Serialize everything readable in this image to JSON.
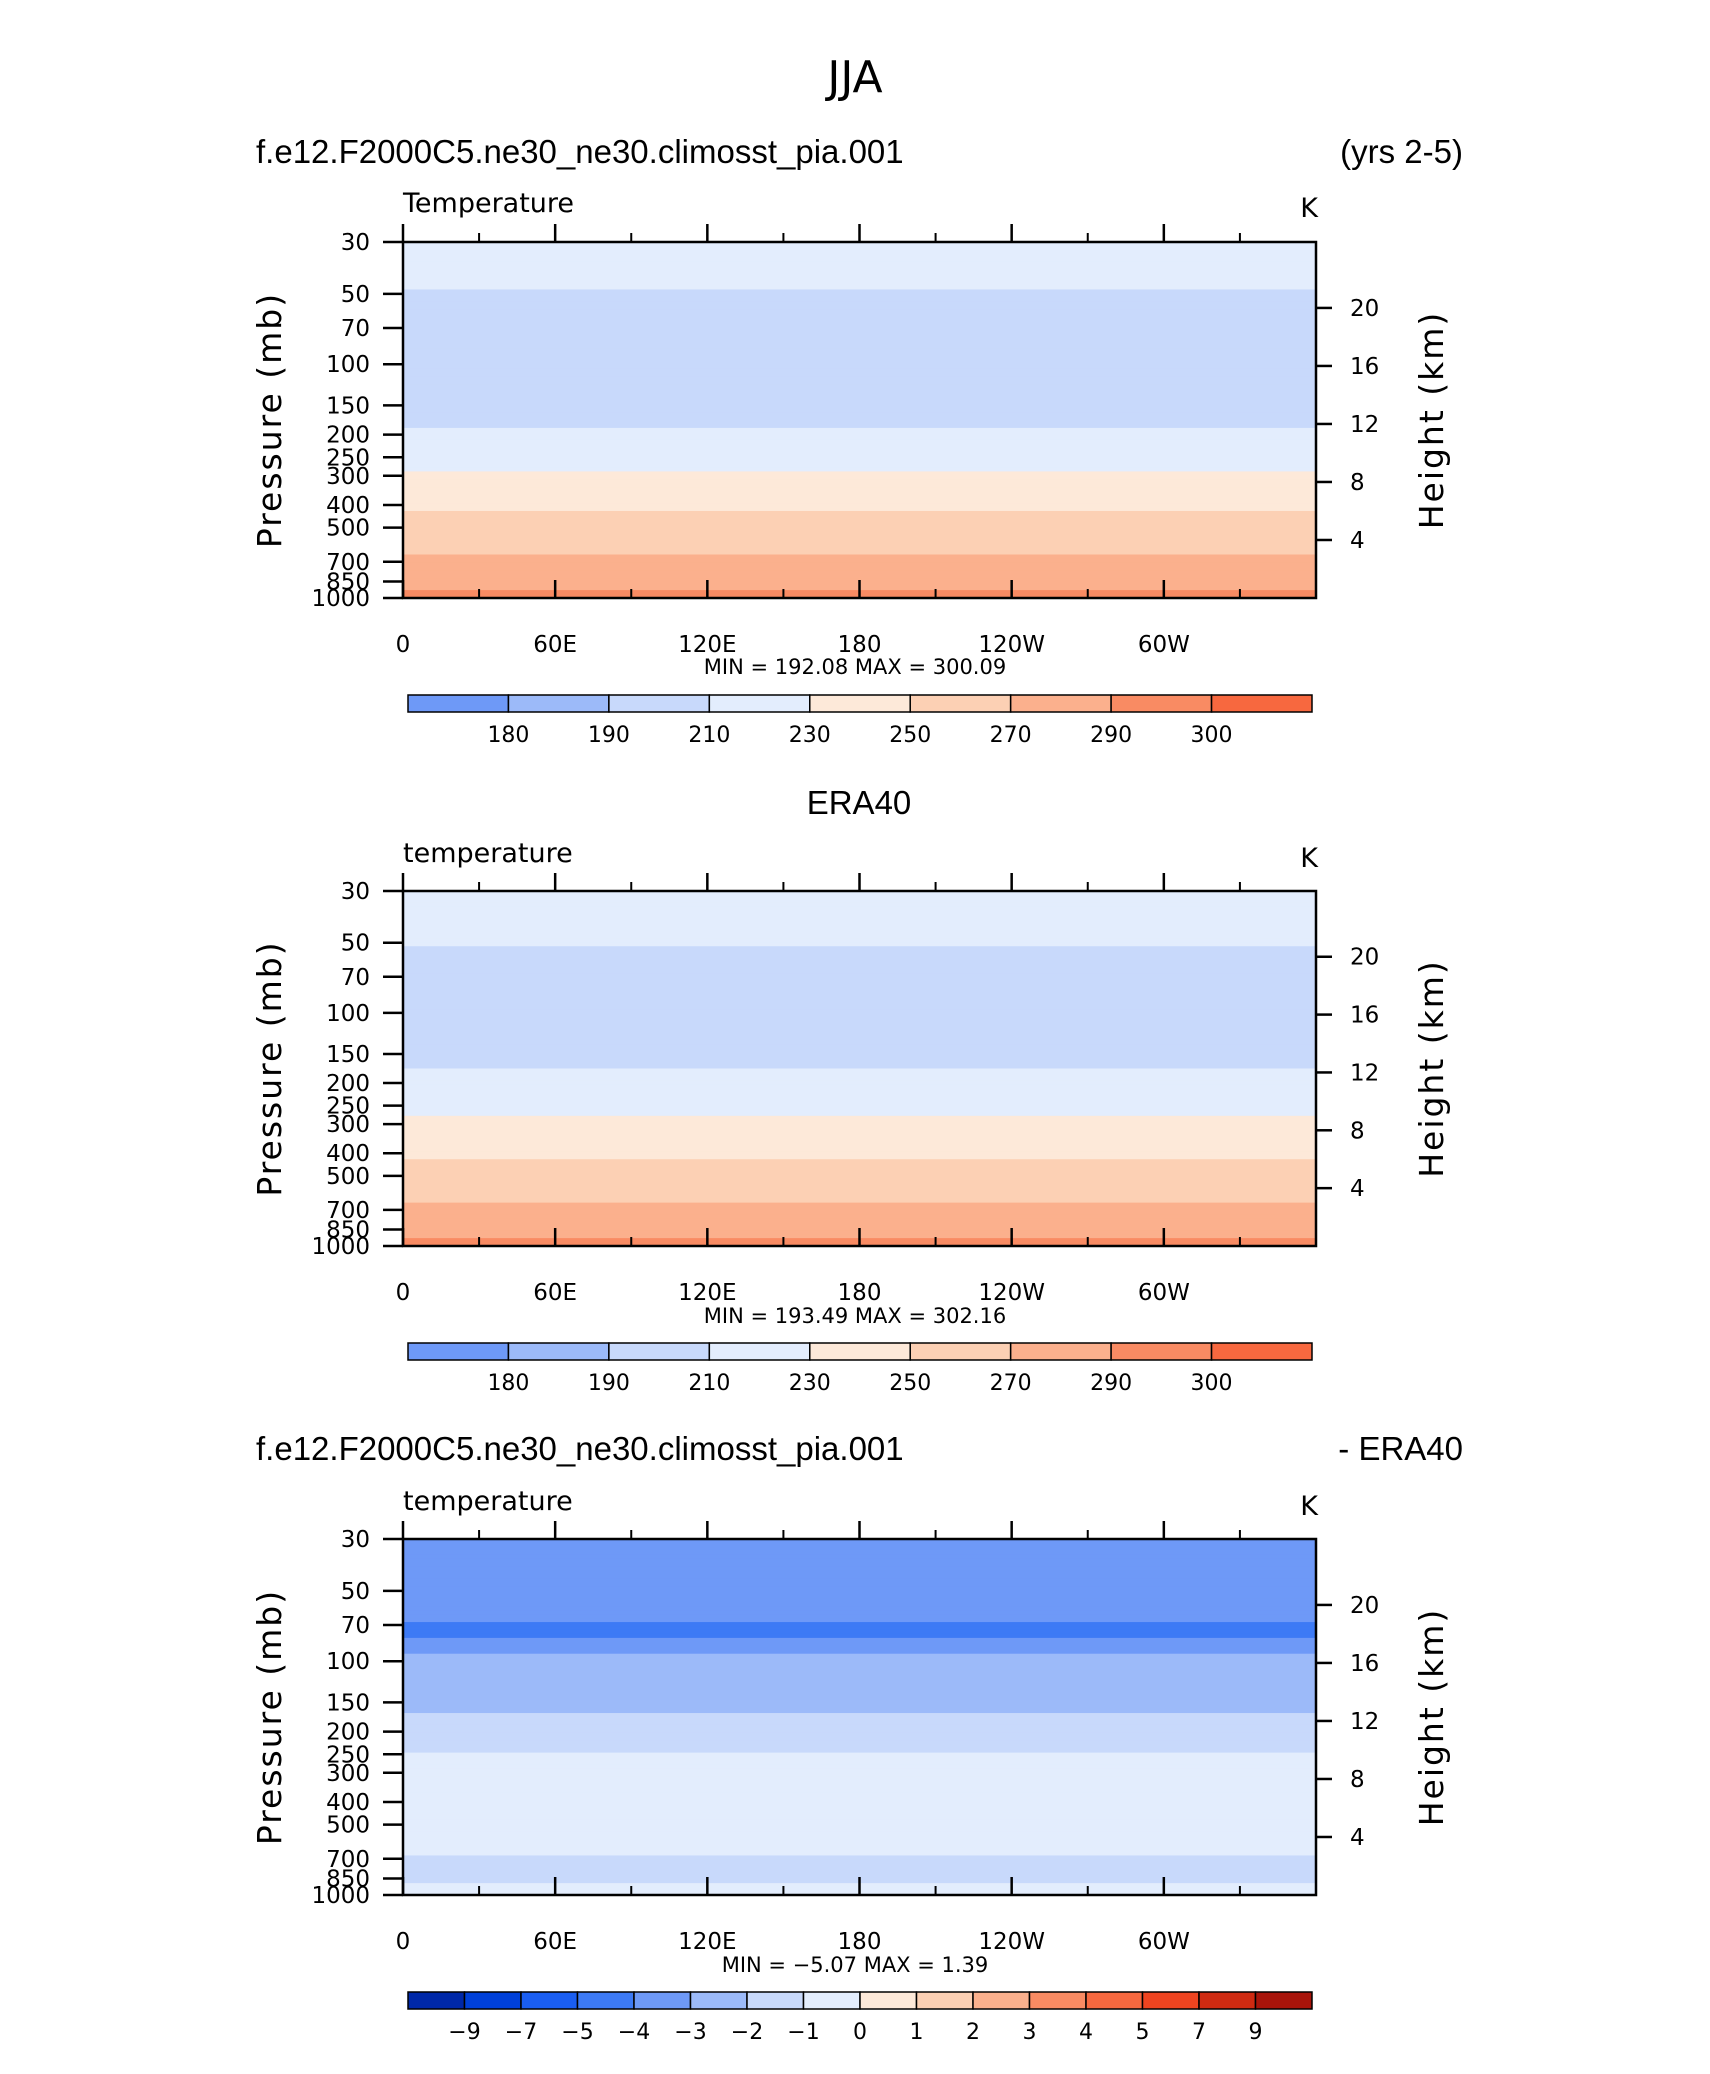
{
  "figure": {
    "title": "JJA"
  },
  "colorbar_colors": [
    "#00007f",
    "#0028a8",
    "#0040d9",
    "#1a5ef2",
    "#3d7af5",
    "#6e99f7",
    "#9cbaf9",
    "#c8d9fb",
    "#e3edfd",
    "#fde9d9",
    "#fcd0b4",
    "#fbb08d",
    "#f98b63",
    "#f7683f",
    "#ef4420",
    "#cf2a11",
    "#a8140a",
    "#7a0404"
  ],
  "panels": [
    {
      "header_left": "f.e12.F2000C5.ne30_ne30.climosst_pia.001",
      "header_right": "(yrs 2-5)",
      "variable_label": "Temperature",
      "units": "K",
      "min_max": "MIN =  192.08   MAX =  300.09",
      "colorbar_labels": [
        "180",
        "190",
        "210",
        "230",
        "250",
        "270",
        "290",
        "300"
      ]
    },
    {
      "header_center": "ERA40",
      "variable_label": "temperature",
      "units": "K",
      "min_max": "MIN =  193.49   MAX =  302.16",
      "colorbar_labels": [
        "180",
        "190",
        "210",
        "230",
        "250",
        "270",
        "290",
        "300"
      ]
    },
    {
      "header_left": "f.e12.F2000C5.ne30_ne30.climosst_pia.001",
      "header_right": "- ERA40",
      "variable_label": "temperature",
      "units": "K",
      "min_max": "MIN =   −5.07   MAX =     1.39",
      "colorbar_labels": [
        "−9",
        "−7",
        "−5",
        "−4",
        "−3",
        "−2",
        "−1",
        "0",
        "1",
        "2",
        "3",
        "4",
        "5",
        "7",
        "9"
      ]
    }
  ],
  "chart_data": [
    {
      "type": "heatmap",
      "title": "f.e12.F2000C5.ne30_ne30.climosst_pia.001 (yrs 2-5)",
      "variable": "Temperature",
      "units": "K",
      "ylabel": "Pressure (mb)",
      "ylabel_right": "Height (km)",
      "x_ticks": [
        "0",
        "60E",
        "120E",
        "180",
        "120W",
        "60W"
      ],
      "x_tick_values": [
        0,
        60,
        120,
        180,
        240,
        300
      ],
      "xlim": [
        0,
        360
      ],
      "y_ticks": [
        30,
        50,
        70,
        100,
        150,
        200,
        250,
        300,
        400,
        500,
        700,
        850,
        1000
      ],
      "ylim": [
        1000,
        30
      ],
      "y_scale": "log",
      "height_ticks": [
        4,
        8,
        12,
        16,
        20
      ],
      "min": 192.08,
      "max": 300.09,
      "colorbar_levels": [
        180,
        190,
        210,
        230,
        250,
        270,
        290,
        300
      ],
      "profile": {
        "pressure": [
          30,
          45,
          70,
          100,
          140,
          185,
          230,
          280,
          330,
          400,
          500,
          600,
          700,
          800,
          900,
          1000
        ],
        "temperature": [
          225,
          212,
          199,
          194,
          200,
          210,
          220,
          229,
          238,
          247,
          256,
          265,
          274,
          282,
          288,
          293
        ]
      }
    },
    {
      "type": "heatmap",
      "title": "ERA40",
      "variable": "temperature",
      "units": "K",
      "ylabel": "Pressure (mb)",
      "ylabel_right": "Height (km)",
      "x_ticks": [
        "0",
        "60E",
        "120E",
        "180",
        "120W",
        "60W"
      ],
      "x_tick_values": [
        0,
        60,
        120,
        180,
        240,
        300
      ],
      "xlim": [
        0,
        360
      ],
      "y_ticks": [
        30,
        50,
        70,
        100,
        150,
        200,
        250,
        300,
        400,
        500,
        700,
        850,
        1000
      ],
      "ylim": [
        1000,
        30
      ],
      "y_scale": "log",
      "height_ticks": [
        4,
        8,
        12,
        16,
        20
      ],
      "min": 193.49,
      "max": 302.16,
      "colorbar_levels": [
        180,
        190,
        210,
        230,
        250,
        270,
        290,
        300
      ],
      "profile": {
        "pressure": [
          30,
          45,
          70,
          100,
          140,
          185,
          230,
          280,
          330,
          400,
          500,
          600,
          700,
          800,
          900,
          1000
        ],
        "temperature": [
          226,
          213,
          203,
          197,
          203,
          212,
          222,
          231,
          240,
          248,
          257,
          266,
          275,
          283,
          289,
          295
        ]
      }
    },
    {
      "type": "heatmap",
      "title": "f.e12.F2000C5.ne30_ne30.climosst_pia.001 - ERA40",
      "variable": "temperature",
      "units": "K",
      "ylabel": "Pressure (mb)",
      "ylabel_right": "Height (km)",
      "x_ticks": [
        "0",
        "60E",
        "120E",
        "180",
        "120W",
        "60W"
      ],
      "x_tick_values": [
        0,
        60,
        120,
        180,
        240,
        300
      ],
      "xlim": [
        0,
        360
      ],
      "y_ticks": [
        30,
        50,
        70,
        100,
        150,
        200,
        250,
        300,
        400,
        500,
        700,
        850,
        1000
      ],
      "ylim": [
        1000,
        30
      ],
      "y_scale": "log",
      "height_ticks": [
        4,
        8,
        12,
        16,
        20
      ],
      "min": -5.07,
      "max": 1.39,
      "colorbar_levels": [
        -9,
        -7,
        -5,
        -4,
        -3,
        -2,
        -1,
        0,
        1,
        2,
        3,
        4,
        5,
        7,
        9
      ],
      "profile": {
        "pressure": [
          30,
          45,
          60,
          75,
          90,
          110,
          150,
          200,
          270,
          330,
          400,
          500,
          600,
          700,
          800,
          900,
          1000
        ],
        "temperature": [
          -3.5,
          -3.5,
          -3.5,
          -4.3,
          -3.2,
          -2.4,
          -2.2,
          -1.6,
          -0.8,
          -0.4,
          -0.5,
          -0.5,
          -0.6,
          -1.2,
          -1.3,
          -1.0,
          -1.0
        ]
      }
    }
  ]
}
